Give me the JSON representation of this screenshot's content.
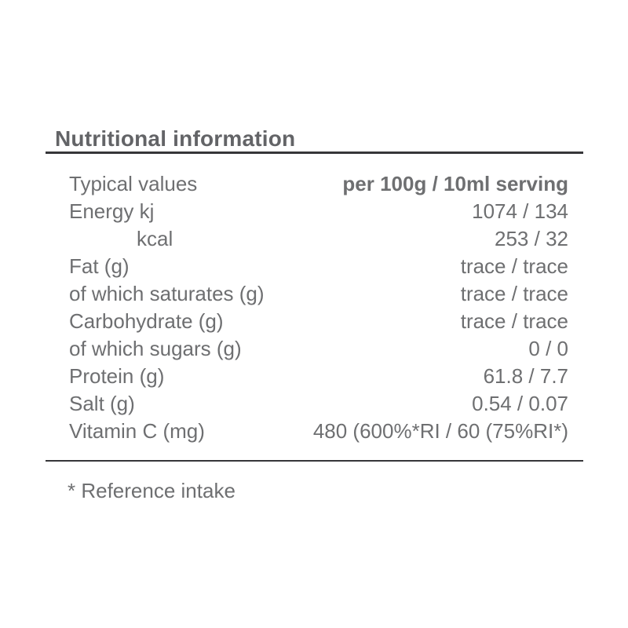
{
  "header": {
    "title": "Nutritional information"
  },
  "table": {
    "header": {
      "label": "Typical values",
      "value": "per 100g / 10ml serving"
    },
    "rows": [
      {
        "label": "Energy kj",
        "value": "1074 / 134"
      },
      {
        "label": "kcal",
        "value": "253 / 32"
      },
      {
        "label": "Fat (g)",
        "value": "trace / trace"
      },
      {
        "label": "of which saturates (g)",
        "value": "trace / trace"
      },
      {
        "label": "Carbohydrate (g)",
        "value": "trace / trace"
      },
      {
        "label": "of which sugars (g)",
        "value": "0 / 0"
      },
      {
        "label": "Protein (g)",
        "value": "61.8 / 7.7"
      },
      {
        "label": "Salt (g)",
        "value": "0.54 / 0.07"
      },
      {
        "label": "Vitamin C (mg)",
        "value": "480 (600%*RI / 60 (75%RI*)"
      }
    ]
  },
  "footnote": {
    "text": "* Reference intake"
  },
  "colors": {
    "background": "#ffffff",
    "body_text": "#6e6f71",
    "heading_text": "#636467",
    "rule": "#363639"
  }
}
